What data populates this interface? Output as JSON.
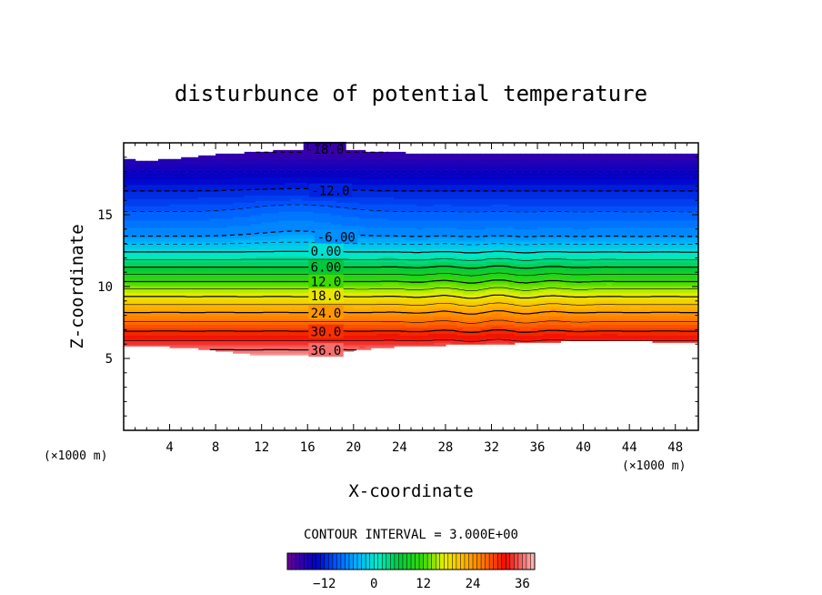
{
  "chart_data": {
    "type": "contour",
    "title": "disturbunce of potential temperature",
    "xlabel": "X-coordinate",
    "ylabel": "Z-coordinate",
    "x_unit": "(×1000 m)",
    "y_unit": "(×1000 m)",
    "xlim": [
      0,
      50
    ],
    "ylim": [
      0,
      20
    ],
    "x_ticks": [
      4,
      8,
      12,
      16,
      20,
      24,
      28,
      32,
      36,
      40,
      44,
      48
    ],
    "y_ticks": [
      5,
      10,
      15
    ],
    "contour_interval_text": "CONTOUR INTERVAL = 3.000E+00",
    "contour_interval": 3.0,
    "value_range": [
      -21,
      39
    ],
    "contour_labels": [
      {
        "text": "-18.0",
        "x": 17.5,
        "z": 19.5
      },
      {
        "text": "-12.0",
        "x": 18.0,
        "z": 16.6
      },
      {
        "text": "-6.00",
        "x": 18.5,
        "z": 13.4
      },
      {
        "text": "0.00",
        "x": 17.6,
        "z": 12.4
      },
      {
        "text": "6.00",
        "x": 17.6,
        "z": 11.3
      },
      {
        "text": "12.0",
        "x": 17.6,
        "z": 10.3
      },
      {
        "text": "18.0",
        "x": 17.6,
        "z": 9.3
      },
      {
        "text": "24.0",
        "x": 17.6,
        "z": 8.1
      },
      {
        "text": "30.0",
        "x": 17.6,
        "z": 6.8
      },
      {
        "text": "36.0",
        "x": 17.6,
        "z": 5.5
      }
    ],
    "colorbar": {
      "ticks": [
        -12,
        0,
        12,
        24,
        36
      ],
      "range": [
        -21,
        39
      ]
    }
  }
}
